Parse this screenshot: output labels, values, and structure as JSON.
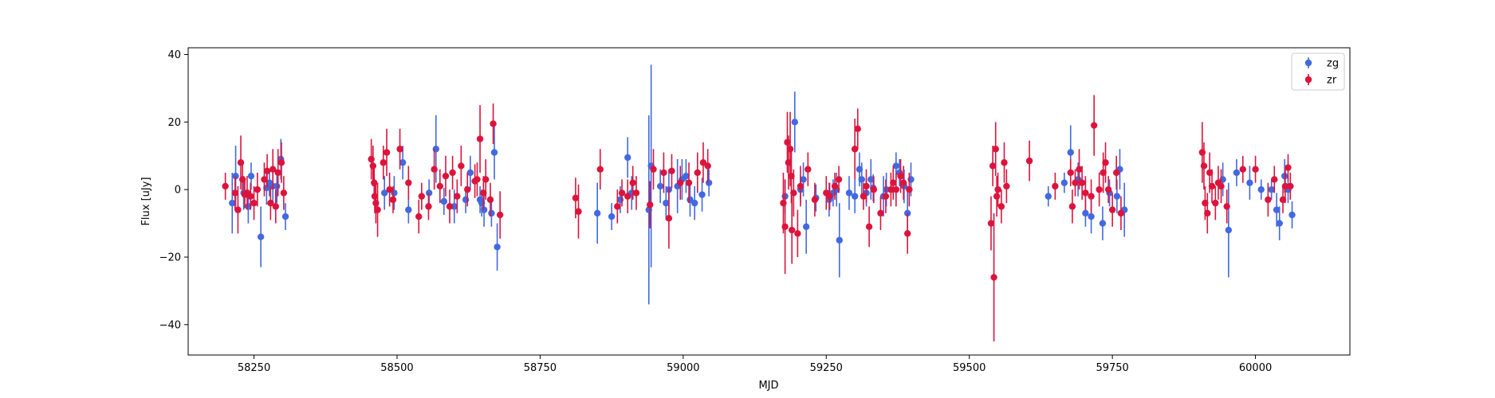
{
  "chart_data": {
    "type": "scatter",
    "title": "",
    "xlabel": "MJD",
    "ylabel": "Flux [uJy]",
    "xlim": [
      58135,
      60165
    ],
    "ylim": [
      -49,
      42
    ],
    "xticks": [
      58250,
      58500,
      58750,
      59000,
      59250,
      59500,
      59750,
      60000
    ],
    "xtick_labels": [
      "58250",
      "58500",
      "58750",
      "59000",
      "59250",
      "59500",
      "59750",
      "60000"
    ],
    "yticks": [
      -40,
      -20,
      0,
      20,
      40
    ],
    "ytick_labels": [
      "−40",
      "−20",
      "0",
      "20",
      "40"
    ],
    "grid": false,
    "legend_position": "top-right",
    "error_bars": true,
    "series": [
      {
        "name": "zg",
        "color": "#4169e1",
        "points": [
          [
            58212,
            -4,
            9
          ],
          [
            58218,
            4,
            9
          ],
          [
            58232,
            -1,
            5
          ],
          [
            58240,
            -5,
            5
          ],
          [
            58245,
            4,
            4
          ],
          [
            58262,
            -14,
            9
          ],
          [
            58272,
            0.5,
            5
          ],
          [
            58277,
            2,
            4
          ],
          [
            58283,
            1,
            5
          ],
          [
            58290,
            1,
            5
          ],
          [
            58297,
            9,
            6
          ],
          [
            58305,
            -8,
            4
          ],
          [
            58478,
            -1,
            5
          ],
          [
            58495,
            -1,
            5
          ],
          [
            58510,
            8,
            5
          ],
          [
            58520,
            -6,
            4
          ],
          [
            58556,
            -1,
            4
          ],
          [
            58568,
            12,
            10
          ],
          [
            58582,
            -3.5,
            4
          ],
          [
            58600,
            -5,
            5
          ],
          [
            58620,
            -3,
            4
          ],
          [
            58628,
            5,
            5
          ],
          [
            58645,
            -3,
            4
          ],
          [
            58648,
            -4,
            4
          ],
          [
            58652,
            -6,
            5
          ],
          [
            58665,
            -7,
            4
          ],
          [
            58670,
            11,
            8
          ],
          [
            58675,
            -17,
            7
          ],
          [
            58850,
            -7,
            9
          ],
          [
            58875,
            -8,
            4
          ],
          [
            58890,
            -3,
            4
          ],
          [
            58903,
            9.5,
            6
          ],
          [
            58910,
            -1,
            5
          ],
          [
            58940,
            -6,
            28
          ],
          [
            58944,
            7,
            30
          ],
          [
            58960,
            1,
            5
          ],
          [
            58970,
            -4,
            5
          ],
          [
            58975,
            0,
            6
          ],
          [
            58990,
            1,
            8
          ],
          [
            58998,
            3,
            6
          ],
          [
            59005,
            4,
            5
          ],
          [
            59012,
            -3,
            5
          ],
          [
            59020,
            -4,
            5
          ],
          [
            59033,
            -1.5,
            5
          ],
          [
            59045,
            2,
            4
          ],
          [
            59178,
            -2,
            5
          ],
          [
            59195,
            20,
            9
          ],
          [
            59205,
            0,
            4
          ],
          [
            59210,
            3,
            5
          ],
          [
            59215,
            -11,
            8
          ],
          [
            59232,
            -2.5,
            4
          ],
          [
            59255,
            -3,
            5
          ],
          [
            59262,
            -1,
            4
          ],
          [
            59268,
            0,
            5
          ],
          [
            59273,
            -15,
            11
          ],
          [
            59290,
            -1,
            5
          ],
          [
            59300,
            -2,
            5
          ],
          [
            59308,
            6,
            5
          ],
          [
            59312,
            3,
            5
          ],
          [
            59320,
            -1,
            4
          ],
          [
            59328,
            3,
            6
          ],
          [
            59332,
            0.5,
            4
          ],
          [
            59350,
            -2,
            6
          ],
          [
            59355,
            0,
            5
          ],
          [
            59372,
            7,
            4
          ],
          [
            59378,
            5,
            4
          ],
          [
            59386,
            1,
            5
          ],
          [
            59392,
            -7,
            8
          ],
          [
            59398,
            3,
            5
          ],
          [
            59638,
            -2,
            3
          ],
          [
            59666,
            2,
            3
          ],
          [
            59677,
            11,
            8
          ],
          [
            59690,
            3,
            5
          ],
          [
            59703,
            -7,
            4
          ],
          [
            59713,
            -8,
            5
          ],
          [
            59733,
            -10,
            5
          ],
          [
            59745,
            -1,
            4
          ],
          [
            59758,
            -2,
            5
          ],
          [
            59763,
            6,
            6
          ],
          [
            59771,
            -6,
            8
          ],
          [
            59943,
            3,
            5
          ],
          [
            59953,
            -12,
            14
          ],
          [
            59967,
            5,
            4
          ],
          [
            59990,
            2,
            5
          ],
          [
            60010,
            0,
            3
          ],
          [
            60028,
            0,
            3
          ],
          [
            60037,
            -6,
            5
          ],
          [
            60042,
            -10,
            5
          ],
          [
            60051,
            4,
            5
          ],
          [
            60057,
            0,
            4
          ],
          [
            60064,
            -7.5,
            4
          ]
        ]
      },
      {
        "name": "zr",
        "color": "#dc143c",
        "points": [
          [
            58200,
            1,
            4
          ],
          [
            58217,
            -1,
            5
          ],
          [
            58222,
            -6,
            7
          ],
          [
            58227,
            8,
            8
          ],
          [
            58230,
            3,
            5
          ],
          [
            58234,
            -1.5,
            4
          ],
          [
            58238,
            -1,
            5
          ],
          [
            58244,
            -2,
            4
          ],
          [
            58250,
            -4,
            5
          ],
          [
            58256,
            0,
            5
          ],
          [
            58268,
            3,
            5
          ],
          [
            58273,
            5.5,
            5
          ],
          [
            58279,
            -4,
            5
          ],
          [
            58283,
            6,
            6
          ],
          [
            58288,
            -5,
            5
          ],
          [
            58292,
            5,
            7
          ],
          [
            58298,
            8,
            6
          ],
          [
            58302,
            -1,
            5
          ],
          [
            58455,
            9,
            6
          ],
          [
            58458,
            7,
            6
          ],
          [
            58460,
            2,
            5
          ],
          [
            58461,
            -2,
            5
          ],
          [
            58463,
            -4,
            6
          ],
          [
            58466,
            -6,
            8
          ],
          [
            58476,
            8,
            5
          ],
          [
            58482,
            11,
            7
          ],
          [
            58487,
            0,
            5
          ],
          [
            58493,
            -3,
            4
          ],
          [
            58505,
            12,
            6
          ],
          [
            58520,
            2,
            5
          ],
          [
            58538,
            -8,
            5
          ],
          [
            58543,
            -2,
            4
          ],
          [
            58555,
            -5,
            4
          ],
          [
            58565,
            6,
            6
          ],
          [
            58575,
            1,
            5
          ],
          [
            58585,
            4,
            6
          ],
          [
            58592,
            -5,
            5
          ],
          [
            58597,
            5,
            5
          ],
          [
            58605,
            -2,
            5
          ],
          [
            58612,
            7,
            6
          ],
          [
            58623,
            0,
            5
          ],
          [
            58636,
            2.5,
            5
          ],
          [
            58640,
            3,
            5
          ],
          [
            58645,
            15,
            10
          ],
          [
            58651,
            -1,
            5
          ],
          [
            58655,
            3,
            6
          ],
          [
            58663,
            -3,
            5
          ],
          [
            58668,
            19.5,
            6
          ],
          [
            58680,
            -7.5,
            7
          ],
          [
            58812,
            -2.5,
            6
          ],
          [
            58817,
            -6.5,
            8
          ],
          [
            58855,
            6,
            6
          ],
          [
            58885,
            -5,
            5
          ],
          [
            58893,
            -1,
            4
          ],
          [
            58903,
            -2,
            5
          ],
          [
            58912,
            2,
            5
          ],
          [
            58918,
            -1,
            5
          ],
          [
            58942,
            -4.5,
            7
          ],
          [
            58948,
            6,
            6
          ],
          [
            58966,
            5,
            6
          ],
          [
            58975,
            -8.5,
            9
          ],
          [
            58980,
            5.5,
            5
          ],
          [
            58995,
            2,
            5
          ],
          [
            59010,
            2,
            6
          ],
          [
            59025,
            5,
            6
          ],
          [
            59035,
            8,
            6
          ],
          [
            59043,
            7,
            5
          ],
          [
            59175,
            -4,
            9
          ],
          [
            59178,
            -11,
            14
          ],
          [
            59182,
            14,
            9
          ],
          [
            59184,
            8,
            8
          ],
          [
            59187,
            12,
            11
          ],
          [
            59189,
            4,
            8
          ],
          [
            59190,
            -12,
            10
          ],
          [
            59193,
            -1,
            7
          ],
          [
            59200,
            -13,
            7
          ],
          [
            59205,
            1,
            6
          ],
          [
            59218,
            6,
            5
          ],
          [
            59230,
            -3,
            5
          ],
          [
            59250,
            -1,
            5
          ],
          [
            59256,
            -2,
            4
          ],
          [
            59265,
            1,
            4
          ],
          [
            59272,
            3,
            4
          ],
          [
            59300,
            12,
            9
          ],
          [
            59305,
            18,
            6
          ],
          [
            59315,
            -2,
            4
          ],
          [
            59320,
            1,
            5
          ],
          [
            59325,
            -11,
            6
          ],
          [
            59333,
            0,
            4
          ],
          [
            59345,
            -7,
            5
          ],
          [
            59354,
            -2,
            5
          ],
          [
            59363,
            0,
            5
          ],
          [
            59367,
            2,
            5
          ],
          [
            59372,
            0,
            5
          ],
          [
            59380,
            4,
            5
          ],
          [
            59385,
            2,
            5
          ],
          [
            59392,
            -13,
            6
          ],
          [
            59395,
            0,
            5
          ],
          [
            59538,
            -10,
            8
          ],
          [
            59541,
            7,
            6
          ],
          [
            59543,
            -26,
            19
          ],
          [
            59546,
            12,
            8
          ],
          [
            59548,
            -2,
            6
          ],
          [
            59550,
            0,
            5
          ],
          [
            59556,
            -5,
            5
          ],
          [
            59561,
            8,
            6
          ],
          [
            59565,
            1,
            5
          ],
          [
            59605,
            8.5,
            6
          ],
          [
            59650,
            1,
            4
          ],
          [
            59677,
            5,
            4
          ],
          [
            59680,
            -5,
            5
          ],
          [
            59685,
            2,
            4
          ],
          [
            59692,
            6,
            6
          ],
          [
            59697,
            2,
            5
          ],
          [
            59703,
            -1,
            5
          ],
          [
            59713,
            -2,
            5
          ],
          [
            59718,
            19,
            9
          ],
          [
            59727,
            0,
            5
          ],
          [
            59734,
            5,
            6
          ],
          [
            59738,
            8,
            6
          ],
          [
            59743,
            0,
            4
          ],
          [
            59750,
            -6,
            5
          ],
          [
            59757,
            5,
            5
          ],
          [
            59765,
            -7,
            5
          ],
          [
            59907,
            11,
            9
          ],
          [
            59910,
            7,
            7
          ],
          [
            59912,
            -4,
            5
          ],
          [
            59916,
            -7,
            6
          ],
          [
            59920,
            5,
            6
          ],
          [
            59924,
            1,
            5
          ],
          [
            59930,
            -4,
            5
          ],
          [
            59935,
            2,
            5
          ],
          [
            59940,
            1,
            5
          ],
          [
            59950,
            -5,
            5
          ],
          [
            59978,
            6,
            4
          ],
          [
            60000,
            6,
            4
          ],
          [
            60022,
            -3,
            5
          ],
          [
            60033,
            3,
            4
          ],
          [
            60048,
            -3,
            4
          ],
          [
            60052,
            1,
            5
          ],
          [
            60057,
            6.5,
            4
          ],
          [
            60061,
            1,
            4
          ]
        ]
      }
    ]
  }
}
